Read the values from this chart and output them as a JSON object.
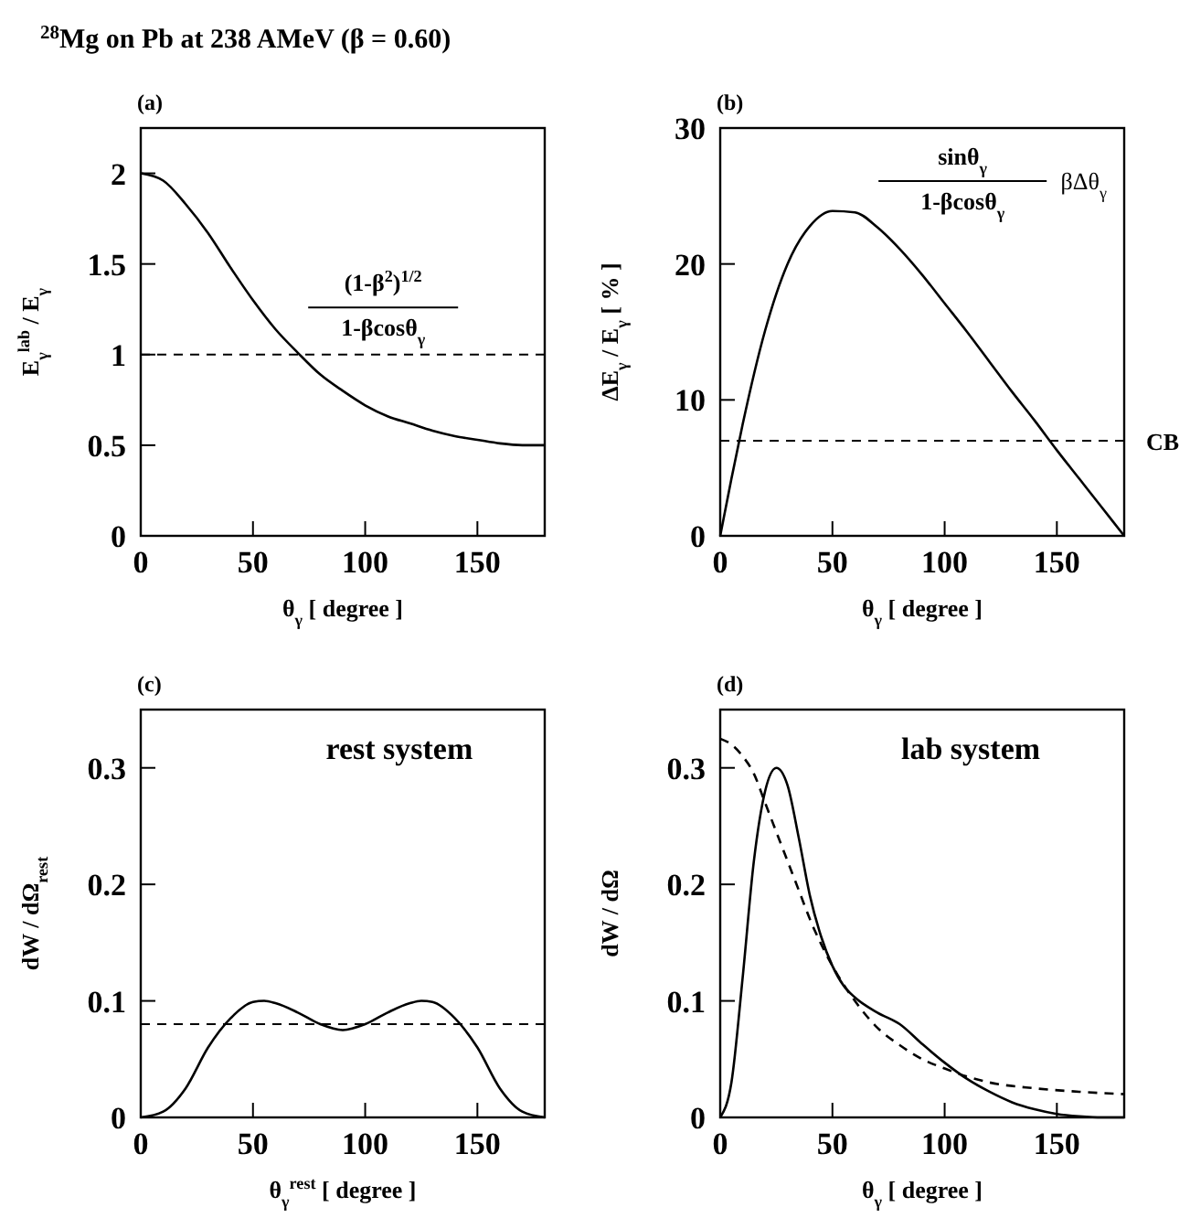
{
  "chart_data": [
    {
      "type": "line",
      "title": "$^{28}$Mg on Pb at 238 AMeV (β = 0.60)",
      "subtitle": "(a)",
      "xlabel": "θ$_{γ}$ [ degree ]",
      "ylabel": "E$_{γ}$$^{lab}$ / E$_{γ}$",
      "xlim": [
        0,
        180
      ],
      "xticks": [
        0,
        50,
        100,
        150
      ],
      "ylim": [
        0,
        2.25
      ],
      "yticks": [
        0,
        0.5,
        1,
        1.5,
        2
      ],
      "line_style": "solid",
      "annotations": [
        "(1-β$^{2}$)$^{1/2}$",
        "1-βcosθ$_{γ}$"
      ],
      "ref_lines": [
        {
          "axis": "y",
          "value": 1,
          "line_style": "dashed",
          "color": "#000000"
        }
      ],
      "series": [
        {
          "color": "#000000",
          "x": [
            0,
            10,
            20,
            30,
            40,
            50,
            60,
            70,
            80,
            90,
            100,
            110,
            120,
            130,
            140,
            150,
            160,
            170,
            180
          ],
          "values": [
            2,
            1.96,
            1.83,
            1.67,
            1.48,
            1.3,
            1.14,
            1.01,
            0.89,
            0.8,
            0.72,
            0.66,
            0.62,
            0.58,
            0.55,
            0.53,
            0.51,
            0.5,
            0.5
          ]
        }
      ]
    },
    {
      "type": "line",
      "title": "(b)",
      "xlabel": "θ$_{γ}$ [ degree ]",
      "ylabel": "ΔE$_{γ}$ / E$_{γ}$ [ % ]",
      "xlim": [
        0,
        180
      ],
      "xticks": [
        0,
        50,
        100,
        150
      ],
      "ylim": [
        0,
        30
      ],
      "yticks": [
        0,
        10,
        20,
        30
      ],
      "line_style": "solid",
      "annotations": [
        "sinθ$_{γ}$",
        "1-βcosθ$_{γ}$",
        "βΔθ$_{γ}$"
      ],
      "ref_lines": [
        {
          "axis": "y",
          "value": 7,
          "label": "CB",
          "line_style": "dashed",
          "color": "#000000"
        }
      ],
      "series": [
        {
          "color": "#000000",
          "x": [
            0,
            5,
            10,
            20,
            30,
            40,
            50,
            60,
            70,
            80,
            90,
            100,
            110,
            120,
            130,
            140,
            150,
            160,
            170,
            180
          ],
          "values": [
            0,
            4.2,
            8.2,
            15.1,
            20,
            22.8,
            23.9,
            23.8,
            22.7,
            21.1,
            19.2,
            17.1,
            15,
            12.8,
            10.6,
            8.5,
            6.3,
            4.2,
            2.1,
            0
          ]
        }
      ]
    },
    {
      "type": "line",
      "title": "(c)",
      "xlabel": "θ$_{γ}$$^{rest}$ [ degree ]",
      "ylabel": "dW / dΩ$_{rest}$",
      "xlim": [
        0,
        180
      ],
      "xticks": [
        0,
        50,
        100,
        150
      ],
      "ylim": [
        0,
        0.35
      ],
      "yticks": [
        0,
        0.1,
        0.2,
        0.3
      ],
      "line_style": "solid",
      "annotations": [
        "rest system"
      ],
      "ref_lines": [
        {
          "axis": "y",
          "value": 0.08,
          "line_style": "dashed",
          "color": "#000000"
        }
      ],
      "series": [
        {
          "color": "#000000",
          "x": [
            0,
            10,
            20,
            30,
            40,
            50,
            55,
            60,
            70,
            80,
            90,
            100,
            110,
            120,
            125,
            130,
            140,
            150,
            160,
            170,
            180
          ],
          "values": [
            0,
            0.005,
            0.025,
            0.06,
            0.085,
            0.099,
            0.1,
            0.098,
            0.09,
            0.08,
            0.075,
            0.08,
            0.09,
            0.098,
            0.1,
            0.099,
            0.085,
            0.06,
            0.025,
            0.005,
            0
          ]
        }
      ]
    },
    {
      "type": "line",
      "title": "(d)",
      "xlabel": "θ$_{γ}$ [ degree ]",
      "ylabel": "dW / dΩ",
      "xlim": [
        0,
        180
      ],
      "xticks": [
        0,
        50,
        100,
        150
      ],
      "ylim": [
        0,
        0.35
      ],
      "yticks": [
        0,
        0.1,
        0.2,
        0.3
      ],
      "line_style": "solid",
      "annotations": [
        "lab  system"
      ],
      "series": [
        {
          "color": "#000000",
          "x": [
            0,
            5,
            10,
            15,
            20,
            25,
            30,
            35,
            40,
            45,
            50,
            55,
            60,
            70,
            80,
            90,
            100,
            110,
            120,
            130,
            140,
            150,
            160,
            170,
            180
          ],
          "values": [
            0,
            0.03,
            0.12,
            0.22,
            0.28,
            0.3,
            0.285,
            0.24,
            0.19,
            0.155,
            0.13,
            0.113,
            0.103,
            0.09,
            0.08,
            0.063,
            0.047,
            0.033,
            0.022,
            0.013,
            0.007,
            0.003,
            0.001,
            0,
            0
          ]
        },
        {
          "color": "#000000",
          "line_style": "dashed",
          "x": [
            0,
            5,
            10,
            15,
            20,
            25,
            30,
            35,
            40,
            50,
            60,
            70,
            80,
            90,
            100,
            110,
            120,
            140,
            160,
            180
          ],
          "values": [
            0.325,
            0.32,
            0.31,
            0.295,
            0.27,
            0.245,
            0.22,
            0.195,
            0.17,
            0.13,
            0.1,
            0.077,
            0.062,
            0.05,
            0.042,
            0.035,
            0.03,
            0.025,
            0.022,
            0.02
          ]
        }
      ]
    }
  ]
}
